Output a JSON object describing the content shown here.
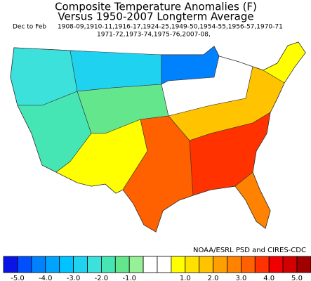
{
  "title": [
    "Composite Temperature Anomalies (F)",
    "Versus 1950-2007 Longterm Average"
  ],
  "season": "Dec to Feb",
  "years": [
    "1908-09,1910-11,1916-17,1924-25,1949-50,1954-55,1956-57,1970-71",
    "1971-72,1973-74,1975-76,2007-08,"
  ],
  "map": {
    "region_values": [
      -2.2,
      -3.0,
      -4.2,
      -1.8,
      -1.3,
      0.7,
      0.2,
      3.2,
      1.7,
      0.8,
      3.6,
      2.8
    ]
  },
  "colorbar": {
    "bounds": [
      -5,
      -4.5,
      -4,
      -3.5,
      -3,
      -2.5,
      -2,
      -1.5,
      -1,
      -0.5,
      0,
      0.5,
      1,
      1.5,
      2,
      2.5,
      3,
      3.5,
      4,
      4.5,
      5
    ],
    "colors": [
      "#0a14e6",
      "#0050ff",
      "#0082ff",
      "#00a4ff",
      "#00c3ff",
      "#1ed2f0",
      "#3ce1dc",
      "#46e6b4",
      "#64e68c",
      "#96f096",
      "#ffffff",
      "#ffffff",
      "#ffff00",
      "#ffe100",
      "#ffc300",
      "#ffa000",
      "#ff8200",
      "#ff6000",
      "#ff3200",
      "#f00000",
      "#d20000",
      "#a00000"
    ],
    "ticks": [
      {
        "value": -5,
        "label": "-5.0"
      },
      {
        "value": -4,
        "label": "-4.0"
      },
      {
        "value": -3,
        "label": "-3.0"
      },
      {
        "value": -2,
        "label": "-2.0"
      },
      {
        "value": -1,
        "label": "-1.0"
      },
      {
        "value": 1,
        "label": "1.0"
      },
      {
        "value": 2,
        "label": "2.0"
      },
      {
        "value": 3,
        "label": "3.0"
      },
      {
        "value": 4,
        "label": "4.0"
      },
      {
        "value": 5,
        "label": "5.0"
      }
    ]
  },
  "credit": "NOAA/ESRL PSD and CIRES-CDC"
}
